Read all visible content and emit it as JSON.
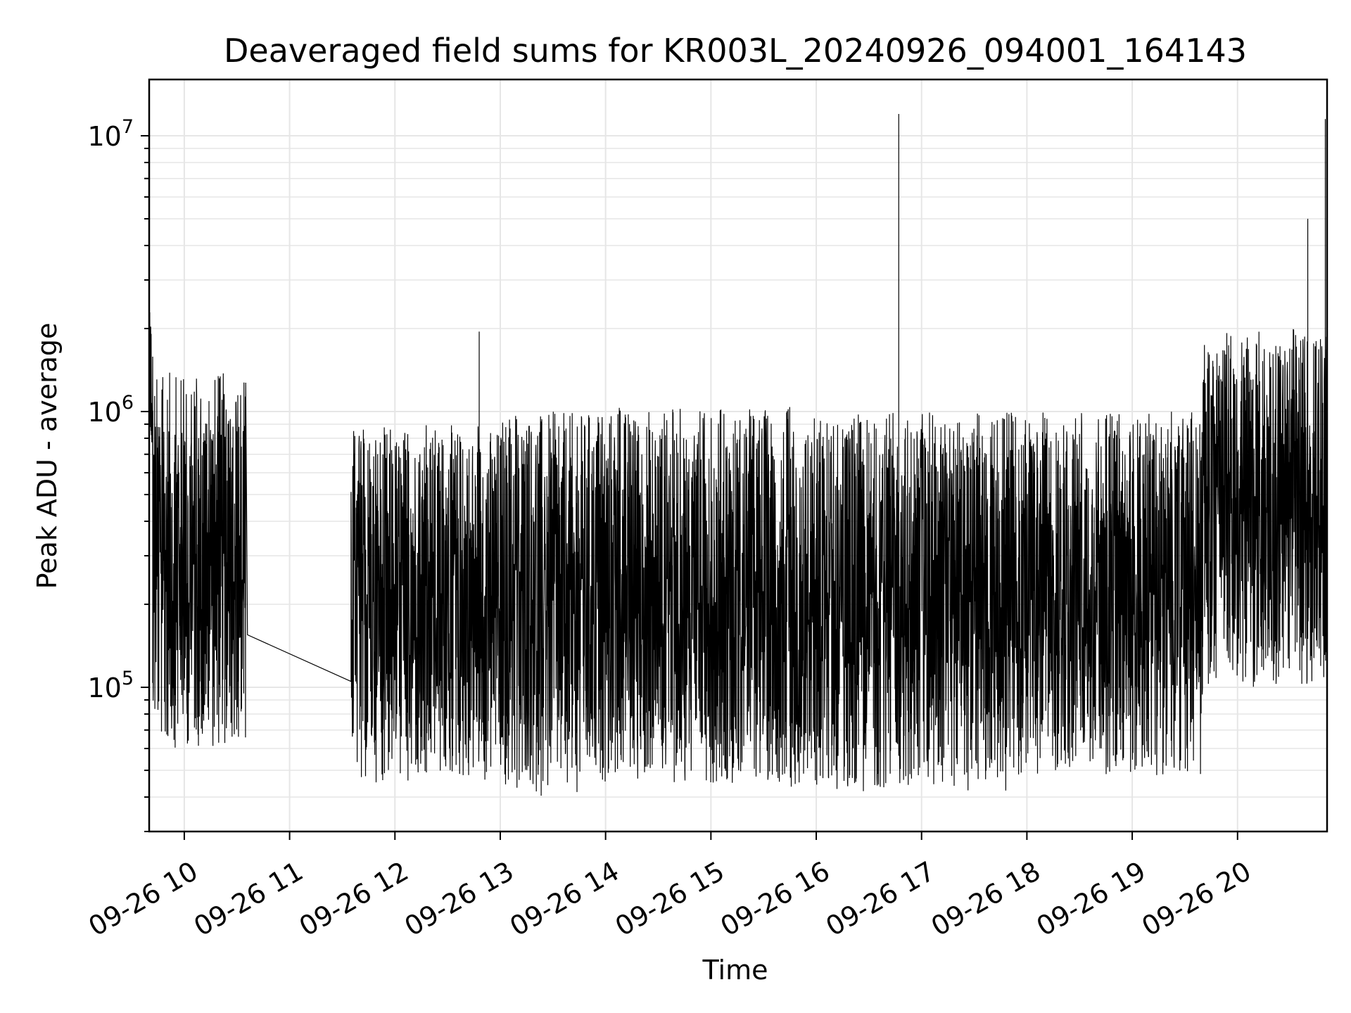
{
  "chart_data": {
    "type": "line",
    "title": "Deaveraged field sums for KR003L_20240926_094001_164143",
    "xlabel": "Time",
    "ylabel": "Peak ADU - average",
    "x_axis": "time",
    "xlim": [
      "2024-09-26 09:40",
      "2024-09-26 20:51"
    ],
    "x_ticks": [
      {
        "t": "2024-09-26 10:00",
        "label": "09-26 10"
      },
      {
        "t": "2024-09-26 11:00",
        "label": "09-26 11"
      },
      {
        "t": "2024-09-26 12:00",
        "label": "09-26 12"
      },
      {
        "t": "2024-09-26 13:00",
        "label": "09-26 13"
      },
      {
        "t": "2024-09-26 14:00",
        "label": "09-26 14"
      },
      {
        "t": "2024-09-26 15:00",
        "label": "09-26 15"
      },
      {
        "t": "2024-09-26 16:00",
        "label": "09-26 16"
      },
      {
        "t": "2024-09-26 17:00",
        "label": "09-26 17"
      },
      {
        "t": "2024-09-26 18:00",
        "label": "09-26 18"
      },
      {
        "t": "2024-09-26 19:00",
        "label": "09-26 19"
      },
      {
        "t": "2024-09-26 20:00",
        "label": "09-26 20"
      }
    ],
    "y_scale": "log",
    "ylim": [
      30000,
      16000000
    ],
    "y_ticks": [
      {
        "value": 100000,
        "base": "10",
        "exp": "5"
      },
      {
        "value": 1000000,
        "base": "10",
        "exp": "6"
      },
      {
        "value": 10000000,
        "base": "10",
        "exp": "7"
      }
    ],
    "grid": true,
    "line_color": "#000000",
    "series": [
      {
        "noise_segments": [
          {
            "t0": "2024-09-26 09:40",
            "t1": "2024-09-26 09:42",
            "lo": 620000,
            "hi": 2300000
          },
          {
            "t0": "2024-09-26 09:42",
            "t1": "2024-09-26 10:35",
            "lo": 60000,
            "hi": 1400000
          },
          {
            "t0": "2024-09-26 11:35",
            "t1": "2024-09-26 13:00",
            "lo": 45000,
            "hi": 900000
          },
          {
            "t0": "2024-09-26 13:00",
            "t1": "2024-09-26 13:55",
            "lo": 40000,
            "hi": 1000000
          },
          {
            "t0": "2024-09-26 13:55",
            "t1": "2024-09-26 15:45",
            "lo": 45000,
            "hi": 1050000
          },
          {
            "t0": "2024-09-26 15:45",
            "t1": "2024-09-26 17:50",
            "lo": 42000,
            "hi": 1000000
          },
          {
            "t0": "2024-09-26 17:50",
            "t1": "2024-09-26 19:40",
            "lo": 48000,
            "hi": 1000000
          },
          {
            "t0": "2024-09-26 19:40",
            "t1": "2024-09-26 20:51",
            "lo": 100000,
            "hi": 2000000
          }
        ],
        "gap_line": {
          "from": {
            "t": "2024-09-26 10:36",
            "y": 155000
          },
          "to": {
            "t": "2024-09-26 11:35",
            "y": 105000
          }
        },
        "spikes": [
          {
            "t": "2024-09-26 12:48",
            "y": 1950000
          },
          {
            "t": "2024-09-26 16:47",
            "y": 12000000
          },
          {
            "t": "2024-09-26 20:40",
            "y": 5000000
          },
          {
            "t": "2024-09-26 20:50",
            "y": 11500000
          }
        ]
      }
    ]
  }
}
